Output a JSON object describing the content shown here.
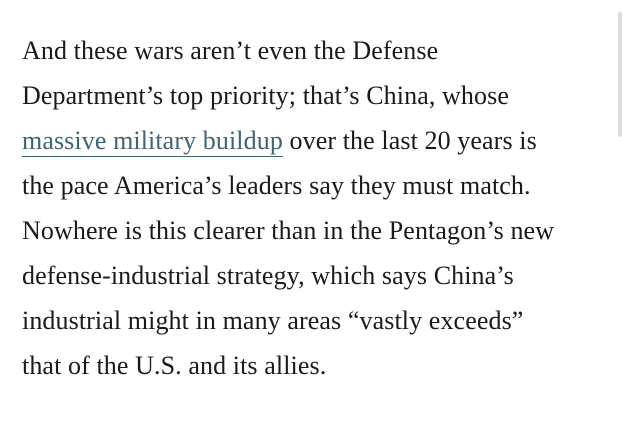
{
  "article": {
    "lines": [
      "And these wars aren’t even the Defense",
      "Department’s top priority; that’s China, whose",
      {
        "link": "massive military buildup",
        "rest": " over the last 20 years is"
      },
      "the pace America’s leaders say they must match.",
      "Nowhere is this clearer than in the Pentagon’s new",
      "defense-industrial strategy, which says China’s",
      "industrial might in many areas “vastly exceeds”",
      "that of the U.S. and its allies."
    ]
  },
  "colors": {
    "text": "#1a1a1a",
    "link": "#3f6475",
    "scrollbar": "#dcdcdc"
  }
}
